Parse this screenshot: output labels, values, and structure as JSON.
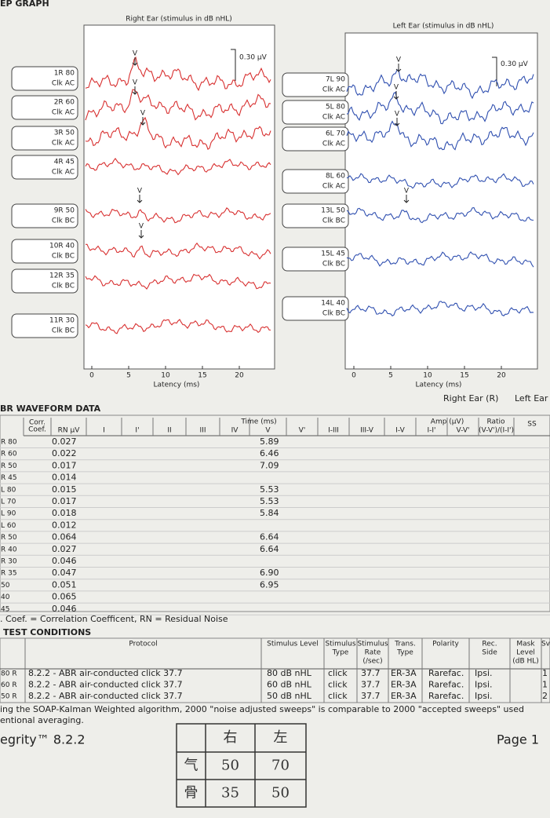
{
  "header": {
    "title": "EP GRAPH"
  },
  "graphs": [
    {
      "title": "Right Ear (stimulus in dB nHL)",
      "scale": "0.30 µV",
      "xlabel": "Latency (ms)",
      "xticks": [
        "0",
        "5",
        "10",
        "15",
        "20"
      ],
      "traces": [
        {
          "label": "1R 80",
          "stim": "Clk AC",
          "marker": "V"
        },
        {
          "label": "2R 60",
          "stim": "Clk AC",
          "marker": "V"
        },
        {
          "label": "3R 50",
          "stim": "Clk AC",
          "marker": "V"
        },
        {
          "label": "4R 45",
          "stim": "Clk AC"
        },
        {
          "label": "9R 50",
          "stim": "Clk BC",
          "marker": "V"
        },
        {
          "label": "10R 40",
          "stim": "Clk BC",
          "marker": "V"
        },
        {
          "label": "12R 35",
          "stim": "Clk BC"
        },
        {
          "label": "11R 30",
          "stim": "Clk BC"
        }
      ]
    },
    {
      "title": "Left Ear (stimulus in dB nHL)",
      "scale": "0.30 µV",
      "xlabel": "Latency (ms)",
      "xticks": [
        "0",
        "5",
        "10",
        "15",
        "20"
      ],
      "traces": [
        {
          "label": "7L 90",
          "stim": "Clk AC",
          "marker": "V"
        },
        {
          "label": "5L 80",
          "stim": "Clk AC",
          "marker": "V"
        },
        {
          "label": "6L 70",
          "stim": "Clk AC",
          "marker": "V"
        },
        {
          "label": "8L 60",
          "stim": "Clk AC"
        },
        {
          "label": "13L 50",
          "stim": "Clk BC",
          "marker": "V"
        },
        {
          "label": "15L 45",
          "stim": "Clk BC"
        },
        {
          "label": "14L 40",
          "stim": "Clk BC"
        }
      ]
    }
  ],
  "legend": [
    "Right Ear (R)",
    "Left Ear"
  ],
  "waveform_table": {
    "title": "BR WAVEFORM DATA",
    "groups": {
      "time": "Time (ms)",
      "amp": "Amp (µV)",
      "ratio": "Ratio",
      "ss": "SS"
    },
    "columns": [
      [
        "Corr.",
        "Coef."
      ],
      [
        "RN µV"
      ],
      [
        "I"
      ],
      [
        "I'"
      ],
      [
        "II"
      ],
      [
        "III"
      ],
      [
        "IV"
      ],
      [
        "V"
      ],
      [
        "V'"
      ],
      [
        "I-III"
      ],
      [
        "III-V"
      ],
      [
        "I-V"
      ],
      [
        "I-I'"
      ],
      [
        "V-V'"
      ],
      [
        "(V-V')/(I-I')"
      ]
    ],
    "rows": [
      {
        "label": "R 80",
        "rn": "0.027",
        "v": "5.89"
      },
      {
        "label": "R 60",
        "rn": "0.022",
        "v": "6.46"
      },
      {
        "label": "R 50",
        "rn": "0.017",
        "v": "7.09"
      },
      {
        "label": "R 45",
        "rn": "0.014"
      },
      {
        "label": "L 80",
        "rn": "0.015",
        "v": "5.53"
      },
      {
        "label": "L 70",
        "rn": "0.017",
        "v": "5.53"
      },
      {
        "label": "L 90",
        "rn": "0.018",
        "v": "5.84"
      },
      {
        "label": "L 60",
        "rn": "0.012"
      },
      {
        "label": "R 50",
        "rn": "0.064",
        "v": "6.64"
      },
      {
        "label": "R 40",
        "rn": "0.027",
        "v": "6.64"
      },
      {
        "label": "R 30",
        "rn": "0.046"
      },
      {
        "label": "R 35",
        "rn": "0.047",
        "v": "6.90"
      },
      {
        "label": "50",
        "rn": "0.051",
        "v": "6.95"
      },
      {
        "label": "40",
        "rn": "0.065"
      },
      {
        "label": "45",
        "rn": "0.046"
      }
    ],
    "footnote": ". Coef. = Correlation Coefficent, RN = Residual Noise"
  },
  "test_conditions": {
    "title": "TEST CONDITIONS",
    "columns": [
      [
        "Protocol"
      ],
      [
        "Stimulus Level"
      ],
      [
        "Stimulus",
        "Type"
      ],
      [
        "Stimulus",
        "Rate",
        "(/sec)"
      ],
      [
        "Trans.",
        "Type"
      ],
      [
        "Polarity"
      ],
      [
        "Rec.",
        "Side"
      ],
      [
        "Mask",
        "Level",
        "(dB HL)"
      ],
      [
        "Sv"
      ]
    ],
    "rows": [
      [
        "80 R",
        "8.2.2 - ABR air-conducted click 37.7",
        "80 dB nHL",
        "click",
        "37.7",
        "ER-3A",
        "Rarefac.",
        "Ipsi.",
        "1"
      ],
      [
        "60 R",
        "8.2.2 - ABR air-conducted click 37.7",
        "60 dB nHL",
        "click",
        "37.7",
        "ER-3A",
        "Rarefac.",
        "Ipsi.",
        "1"
      ],
      [
        "50 R",
        "8.2.2 - ABR air-conducted click 37.7",
        "50 dB nHL",
        "click",
        "37.7",
        "ER-3A",
        "Rarefac.",
        "Ipsi.",
        "2"
      ]
    ],
    "note": [
      "ing the SOAP-Kalman Weighted algorithm, 2000 \"noise adjusted sweeps\" is comparable to 2000 \"accepted sweeps\" used",
      "entional averaging."
    ]
  },
  "footer": {
    "product": "egrity™ 8.2.2",
    "page": "Page 1"
  },
  "handwritten": [
    [
      "",
      "右",
      "左"
    ],
    [
      "气",
      "50",
      "70"
    ],
    [
      "骨",
      "35",
      "50"
    ]
  ]
}
